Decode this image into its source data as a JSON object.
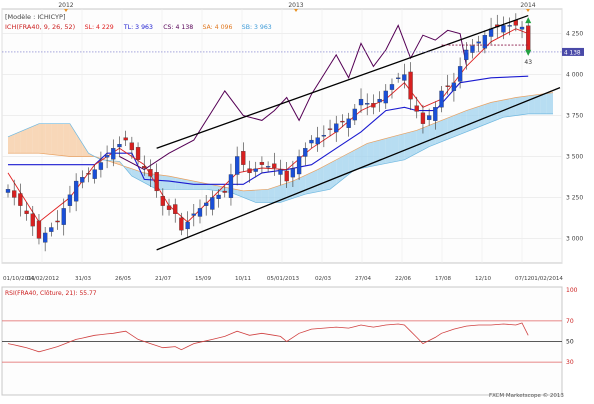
{
  "chart_data": [
    {
      "type": "candlestick",
      "title": "[Modèle : ICHICYP]",
      "indicator_label": "ICH(FRA40, 9, 26, 52)",
      "readouts": [
        {
          "label": "SL: 4 229",
          "color": "#e02020"
        },
        {
          "label": "TL: 3 963",
          "color": "#1b1bd0"
        },
        {
          "label": "CS: 4 138",
          "color": "#550055"
        },
        {
          "label": "SA: 4 096",
          "color": "#e07820"
        },
        {
          "label": "SB: 3 963",
          "color": "#3c9ad8"
        }
      ],
      "year_markers": [
        "2012",
        "2013",
        "2014"
      ],
      "x_tick_labels": [
        "01/10/2011",
        "04/02/2012",
        "31/03",
        "26/05",
        "21/07",
        "15/09",
        "10/11",
        "05/01/2013",
        "02/03",
        "27/04",
        "22/06",
        "17/08",
        "12/10",
        "07/12",
        "01/02/2014"
      ],
      "y_ticks": [
        3000,
        3250,
        3500,
        3750,
        4000,
        4250
      ],
      "y_tick_labels": [
        "3 000",
        "3 250",
        "3 500",
        "3 750",
        "4 000",
        "4 250"
      ],
      "ylim": [
        2850,
        4400
      ],
      "last_price_label": "4 138",
      "last_price": 4138,
      "signal_count_label": "43",
      "price_path": [
        [
          0,
          3300
        ],
        [
          3,
          3150
        ],
        [
          5,
          3000
        ],
        [
          8,
          3100
        ],
        [
          11,
          3350
        ],
        [
          14,
          3420
        ],
        [
          17,
          3550
        ],
        [
          19,
          3600
        ],
        [
          21,
          3480
        ],
        [
          23,
          3380
        ],
        [
          25,
          3200
        ],
        [
          27,
          3150
        ],
        [
          28,
          3050
        ],
        [
          30,
          3150
        ],
        [
          33,
          3250
        ],
        [
          35,
          3280
        ],
        [
          37,
          3500
        ],
        [
          39,
          3400
        ],
        [
          41,
          3450
        ],
        [
          44,
          3420
        ],
        [
          45,
          3350
        ],
        [
          47,
          3500
        ],
        [
          49,
          3600
        ],
        [
          51,
          3630
        ],
        [
          53,
          3700
        ],
        [
          55,
          3730
        ],
        [
          57,
          3850
        ],
        [
          59,
          3800
        ],
        [
          61,
          3900
        ],
        [
          63,
          3980
        ],
        [
          64,
          4000
        ],
        [
          65,
          3850
        ],
        [
          67,
          3700
        ],
        [
          69,
          3800
        ],
        [
          70,
          3900
        ],
        [
          72,
          3950
        ],
        [
          74,
          4150
        ],
        [
          76,
          4200
        ],
        [
          78,
          4280
        ],
        [
          80,
          4300
        ],
        [
          82,
          4300
        ],
        [
          83,
          4290
        ],
        [
          84,
          4150
        ]
      ],
      "tenkan_path": [
        [
          0,
          3400
        ],
        [
          5,
          3100
        ],
        [
          10,
          3250
        ],
        [
          14,
          3450
        ],
        [
          18,
          3550
        ],
        [
          22,
          3450
        ],
        [
          26,
          3200
        ],
        [
          29,
          3100
        ],
        [
          33,
          3250
        ],
        [
          37,
          3400
        ],
        [
          41,
          3430
        ],
        [
          45,
          3420
        ],
        [
          49,
          3550
        ],
        [
          53,
          3650
        ],
        [
          57,
          3780
        ],
        [
          61,
          3850
        ],
        [
          64,
          3950
        ],
        [
          67,
          3800
        ],
        [
          70,
          3850
        ],
        [
          74,
          4050
        ],
        [
          78,
          4200
        ],
        [
          82,
          4280
        ],
        [
          84,
          4250
        ]
      ],
      "kijun_path": [
        [
          0,
          3450
        ],
        [
          5,
          3450
        ],
        [
          10,
          3450
        ],
        [
          14,
          3450
        ],
        [
          16,
          3520
        ],
        [
          20,
          3520
        ],
        [
          22,
          3360
        ],
        [
          26,
          3350
        ],
        [
          30,
          3330
        ],
        [
          34,
          3330
        ],
        [
          38,
          3330
        ],
        [
          41,
          3400
        ],
        [
          45,
          3420
        ],
        [
          49,
          3450
        ],
        [
          53,
          3550
        ],
        [
          57,
          3650
        ],
        [
          61,
          3780
        ],
        [
          64,
          3800
        ],
        [
          66,
          3780
        ],
        [
          69,
          3780
        ],
        [
          73,
          3950
        ],
        [
          78,
          3980
        ],
        [
          84,
          3990
        ]
      ],
      "chikou_path": [
        [
          18,
          3500
        ],
        [
          22,
          3420
        ],
        [
          26,
          3520
        ],
        [
          30,
          3600
        ],
        [
          33,
          3780
        ],
        [
          35,
          3900
        ],
        [
          38,
          3750
        ],
        [
          41,
          3720
        ],
        [
          43,
          3780
        ],
        [
          45,
          3860
        ],
        [
          47,
          3720
        ],
        [
          49,
          3880
        ],
        [
          51,
          4000
        ],
        [
          53,
          4120
        ],
        [
          55,
          3980
        ],
        [
          57,
          4190
        ],
        [
          59,
          4050
        ],
        [
          61,
          4150
        ],
        [
          63,
          4300
        ],
        [
          65,
          4100
        ],
        [
          67,
          4240
        ],
        [
          69,
          4210
        ],
        [
          71,
          4270
        ],
        [
          73,
          4250
        ],
        [
          74,
          4060
        ]
      ],
      "senkou_a_path": [
        [
          0,
          3520
        ],
        [
          5,
          3520
        ],
        [
          10,
          3500
        ],
        [
          14,
          3500
        ],
        [
          18,
          3450
        ],
        [
          22,
          3400
        ],
        [
          26,
          3380
        ],
        [
          30,
          3350
        ],
        [
          34,
          3320
        ],
        [
          38,
          3290
        ],
        [
          42,
          3300
        ],
        [
          46,
          3350
        ],
        [
          50,
          3420
        ],
        [
          54,
          3500
        ],
        [
          58,
          3580
        ],
        [
          62,
          3620
        ],
        [
          66,
          3660
        ],
        [
          70,
          3720
        ],
        [
          74,
          3780
        ],
        [
          78,
          3830
        ],
        [
          82,
          3860
        ],
        [
          86,
          3880
        ],
        [
          88,
          3890
        ]
      ],
      "senkou_b_path": [
        [
          0,
          3620
        ],
        [
          5,
          3700
        ],
        [
          10,
          3700
        ],
        [
          13,
          3520
        ],
        [
          15,
          3480
        ],
        [
          18,
          3470
        ],
        [
          20,
          3380
        ],
        [
          24,
          3300
        ],
        [
          28,
          3300
        ],
        [
          32,
          3300
        ],
        [
          36,
          3280
        ],
        [
          40,
          3220
        ],
        [
          44,
          3220
        ],
        [
          48,
          3270
        ],
        [
          52,
          3300
        ],
        [
          56,
          3420
        ],
        [
          60,
          3450
        ],
        [
          64,
          3480
        ],
        [
          68,
          3560
        ],
        [
          72,
          3620
        ],
        [
          76,
          3680
        ],
        [
          80,
          3740
        ],
        [
          84,
          3760
        ],
        [
          88,
          3760
        ]
      ],
      "channel_upper": [
        [
          24,
          3550
        ],
        [
          84,
          4360
        ]
      ],
      "channel_lower": [
        [
          24,
          2930
        ],
        [
          88,
          3920
        ]
      ]
    },
    {
      "type": "line",
      "title": "RSI(FRA40, Clôture, 21): 55.77",
      "y_ticks": [
        30,
        50,
        70,
        100
      ],
      "ylim": [
        0,
        100
      ],
      "levels": [
        30,
        70
      ],
      "midline": 50,
      "rsi_path": [
        [
          0,
          48
        ],
        [
          3,
          44
        ],
        [
          5,
          40
        ],
        [
          8,
          45
        ],
        [
          11,
          52
        ],
        [
          14,
          56
        ],
        [
          17,
          58
        ],
        [
          19,
          60
        ],
        [
          21,
          52
        ],
        [
          23,
          48
        ],
        [
          25,
          44
        ],
        [
          27,
          45
        ],
        [
          28,
          42
        ],
        [
          30,
          48
        ],
        [
          33,
          52
        ],
        [
          35,
          55
        ],
        [
          37,
          60
        ],
        [
          39,
          56
        ],
        [
          41,
          58
        ],
        [
          44,
          55
        ],
        [
          45,
          50
        ],
        [
          47,
          58
        ],
        [
          49,
          62
        ],
        [
          51,
          63
        ],
        [
          53,
          64
        ],
        [
          55,
          63
        ],
        [
          57,
          66
        ],
        [
          59,
          64
        ],
        [
          61,
          66
        ],
        [
          63,
          67
        ],
        [
          64,
          66
        ],
        [
          65,
          60
        ],
        [
          67,
          48
        ],
        [
          69,
          54
        ],
        [
          70,
          58
        ],
        [
          72,
          62
        ],
        [
          74,
          65
        ],
        [
          76,
          66
        ],
        [
          78,
          66
        ],
        [
          80,
          67
        ],
        [
          82,
          66
        ],
        [
          83,
          68
        ],
        [
          84,
          56
        ]
      ]
    }
  ],
  "footer": {
    "copyright": "FXCM Marketscope © 2013"
  }
}
